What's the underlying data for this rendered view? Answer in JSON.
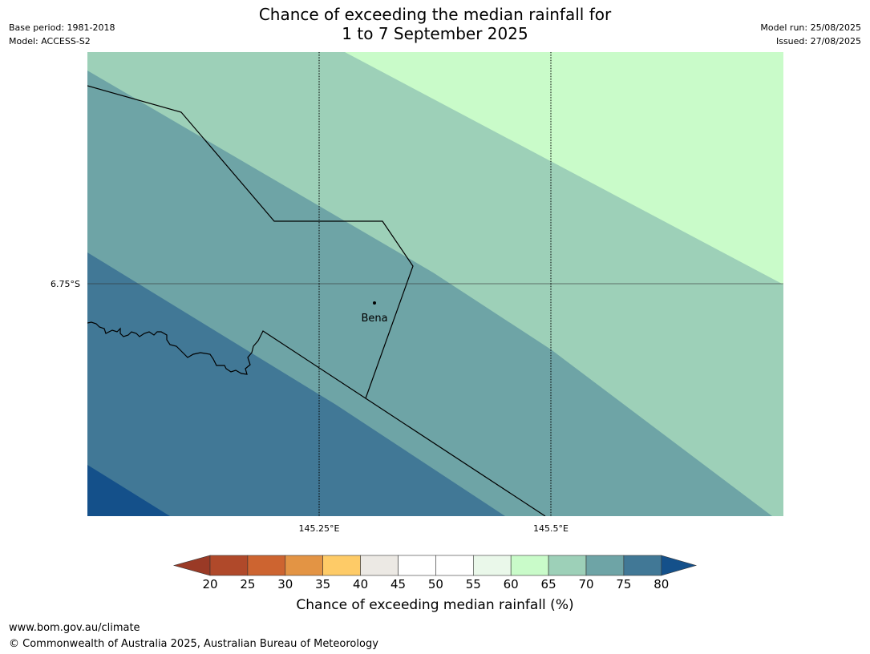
{
  "title": {
    "line1": "Chance of exceeding the median rainfall for",
    "line2": "1 to 7 September 2025"
  },
  "meta": {
    "base_period": "Base period: 1981-2018",
    "model": "Model: ACCESS-S2",
    "model_run": "Model run: 25/08/2025",
    "issued": "Issued: 27/08/2025"
  },
  "map": {
    "place": "Bena",
    "lat_label": "6.75°S",
    "lon_labels": [
      "145.25°E",
      "145.5°E"
    ],
    "band_colors": {
      "60_65": "#c9fbc9",
      "65_70": "#9dd0b8",
      "70_75": "#6ea4a6",
      "75_80": "#417896",
      "over_80": "#14508a"
    }
  },
  "colorbar": {
    "title": "Chance of exceeding median rainfall (%)",
    "ticks": [
      "20",
      "25",
      "30",
      "35",
      "40",
      "45",
      "50",
      "55",
      "60",
      "65",
      "70",
      "75",
      "80"
    ],
    "under_color": "#9a3a26",
    "over_color": "#14508a",
    "colors": [
      "#b0492a",
      "#cd6430",
      "#e39444",
      "#fecb67",
      "#ece9e4",
      "#ffffff",
      "#ffffff",
      "#eaf8ea",
      "#c9fbc9",
      "#9dd0b8",
      "#6ea4a6",
      "#417896"
    ]
  },
  "footer": {
    "url": "www.bom.gov.au/climate",
    "copyright": "© Commonwealth of Australia 2025, Australian Bureau of Meteorology"
  }
}
